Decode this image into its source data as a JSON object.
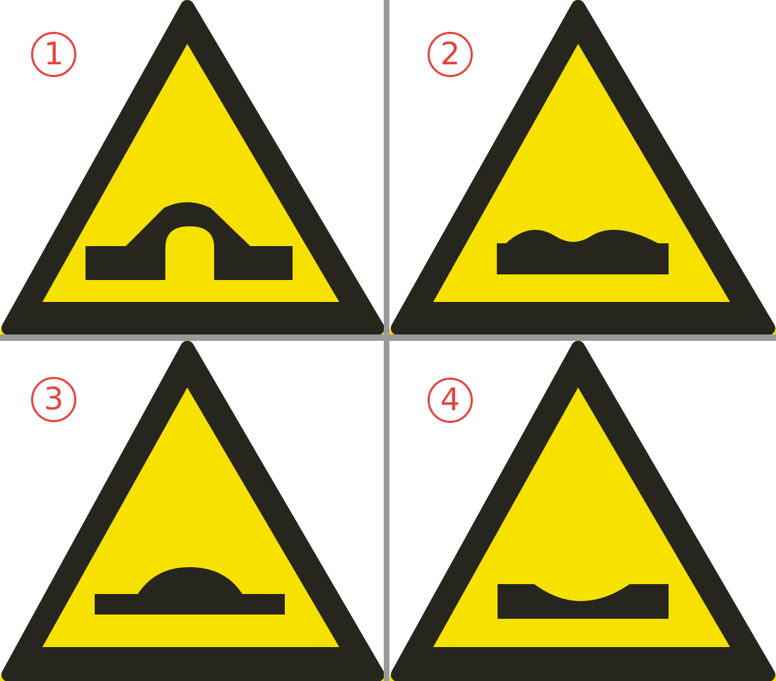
{
  "panels": [
    {
      "number": "1",
      "sign": "humpback-bridge"
    },
    {
      "number": "2",
      "sign": "uneven-road"
    },
    {
      "number": "3",
      "sign": "road-hump"
    },
    {
      "number": "4",
      "sign": "road-dip"
    }
  ],
  "colors": {
    "sign_yellow": "#f7e100",
    "sign_black": "#26261f",
    "number_red": "#e8423f",
    "divider_gray": "#9a9a9a"
  }
}
